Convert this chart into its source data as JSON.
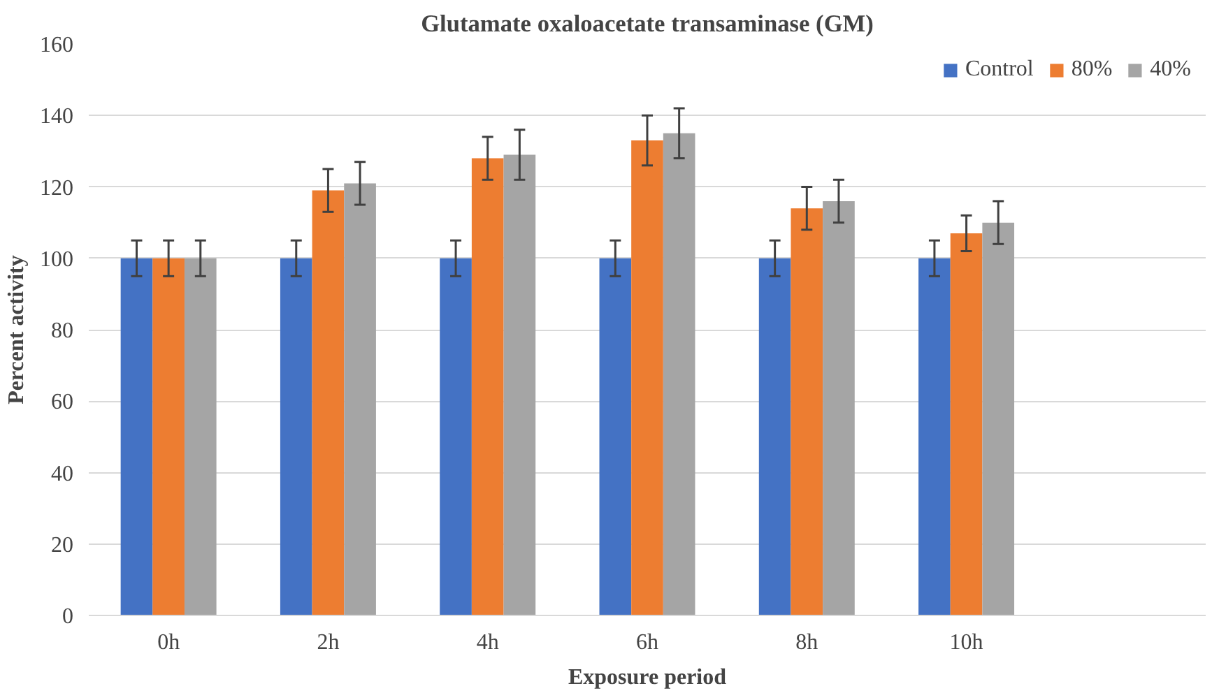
{
  "chart_data": {
    "type": "bar",
    "title": "Glutamate oxaloacetate transaminase (GM)",
    "xlabel": "Exposure period",
    "ylabel": "Percent activity",
    "categories": [
      "0h",
      "2h",
      "4h",
      "6h",
      "8h",
      "10h",
      null
    ],
    "series": [
      {
        "name": "Control",
        "color": "#4472c4",
        "values": [
          100,
          100,
          100,
          100,
          100,
          100,
          null
        ],
        "errors": [
          5,
          5,
          5,
          5,
          5,
          5,
          null
        ]
      },
      {
        "name": "80%",
        "color": "#ed7d31",
        "values": [
          100,
          119,
          128,
          133,
          114,
          107,
          null
        ],
        "errors": [
          5,
          6,
          6,
          7,
          6,
          5,
          null
        ]
      },
      {
        "name": "40%",
        "color": "#a5a5a5",
        "values": [
          100,
          121,
          129,
          135,
          116,
          110,
          null
        ],
        "errors": [
          5,
          6,
          7,
          7,
          6,
          6,
          null
        ]
      }
    ],
    "ylim": [
      0,
      160
    ],
    "yticks": [
      0,
      20,
      40,
      60,
      80,
      100,
      120,
      140,
      160
    ],
    "grid": "y",
    "legend": "top right"
  }
}
